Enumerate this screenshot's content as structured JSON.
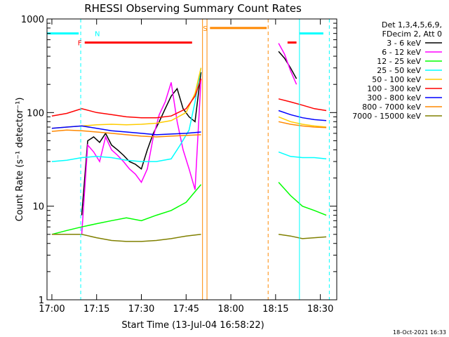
{
  "chart_data": {
    "type": "line",
    "title": "RHESSI Observing Summary Count Rates",
    "xlabel": "Start Time (13-Jul-04 16:58:22)",
    "ylabel": "Count Rate (s⁻¹ detector⁻¹)",
    "y_scale": "log",
    "ylim": [
      1,
      1000
    ],
    "xlim": [
      "16:58:22",
      "18:35:30"
    ],
    "x_ticks": [
      "17:00",
      "17:15",
      "17:30",
      "17:45",
      "18:00",
      "18:15",
      "18:30"
    ],
    "y_ticks": [
      "1",
      "10",
      "100",
      "1000"
    ],
    "footer_date": "18-Oct-2021 16:33",
    "legend_header": [
      "Det 1,3,4,5,6,9,",
      "FDecim 2, Att 0"
    ],
    "legend_placement": "right",
    "series": [
      {
        "name": "3 - 6 keV",
        "color": "#000000",
        "x": [
          "17:10",
          "17:12",
          "17:14",
          "17:16",
          "17:18",
          "17:20",
          "17:22",
          "17:24",
          "17:26",
          "17:28",
          "17:30",
          "17:32",
          "17:34",
          "17:36",
          "17:38",
          "17:40",
          "17:42",
          "17:44",
          "17:46",
          "17:48",
          "17:50",
          "18:16",
          "18:18",
          "18:20",
          "18:22"
        ],
        "y": [
          8,
          50,
          55,
          48,
          60,
          45,
          40,
          35,
          30,
          28,
          25,
          40,
          60,
          80,
          110,
          150,
          180,
          110,
          90,
          80,
          270,
          450,
          380,
          300,
          230
        ]
      },
      {
        "name": "6 - 12 keV",
        "color": "#ff00ff",
        "x": [
          "17:10",
          "17:12",
          "17:14",
          "17:16",
          "17:18",
          "17:20",
          "17:22",
          "17:24",
          "17:26",
          "17:28",
          "17:30",
          "17:32",
          "17:34",
          "17:36",
          "17:38",
          "17:40",
          "17:42",
          "17:44",
          "17:46",
          "17:48",
          "17:50",
          "18:16",
          "18:18",
          "18:20",
          "18:22"
        ],
        "y": [
          5,
          45,
          38,
          30,
          55,
          40,
          35,
          30,
          25,
          22,
          18,
          25,
          55,
          95,
          130,
          210,
          80,
          40,
          25,
          15,
          230,
          550,
          420,
          280,
          200
        ]
      },
      {
        "name": "12 - 25 keV",
        "color": "#00ff00",
        "x": [
          "17:00",
          "17:05",
          "17:10",
          "17:15",
          "17:20",
          "17:25",
          "17:30",
          "17:35",
          "17:40",
          "17:45",
          "17:50",
          "18:16",
          "18:20",
          "18:24",
          "18:28",
          "18:32"
        ],
        "y": [
          5,
          5.5,
          6,
          6.5,
          7,
          7.5,
          7,
          8,
          9,
          11,
          17,
          18,
          13,
          10,
          9,
          8
        ]
      },
      {
        "name": "25 - 50 keV",
        "color": "#00ffff",
        "x": [
          "17:00",
          "17:05",
          "17:10",
          "17:15",
          "17:20",
          "17:25",
          "17:30",
          "17:35",
          "17:40",
          "17:43",
          "17:46",
          "17:48",
          "17:50",
          "18:16",
          "18:20",
          "18:24",
          "18:28",
          "18:32"
        ],
        "y": [
          30,
          31,
          33,
          34,
          33,
          31,
          30,
          30,
          32,
          45,
          65,
          130,
          300,
          38,
          34,
          33,
          33,
          32
        ]
      },
      {
        "name": "50 - 100 keV",
        "color": "#ffcc00",
        "x": [
          "17:00",
          "17:05",
          "17:10",
          "17:15",
          "17:20",
          "17:25",
          "17:30",
          "17:35",
          "17:40",
          "17:45",
          "17:48",
          "17:50",
          "18:16",
          "18:20",
          "18:24",
          "18:28",
          "18:32"
        ],
        "y": [
          68,
          70,
          72,
          74,
          75,
          74,
          75,
          77,
          82,
          100,
          160,
          300,
          90,
          80,
          75,
          72,
          70
        ]
      },
      {
        "name": "100 - 300 keV",
        "color": "#ff0000",
        "x": [
          "17:00",
          "17:05",
          "17:10",
          "17:15",
          "17:20",
          "17:25",
          "17:30",
          "17:35",
          "17:40",
          "17:45",
          "17:48",
          "17:50",
          "18:16",
          "18:20",
          "18:24",
          "18:28",
          "18:32"
        ],
        "y": [
          92,
          98,
          110,
          100,
          95,
          90,
          88,
          88,
          92,
          110,
          150,
          230,
          140,
          130,
          120,
          110,
          105
        ]
      },
      {
        "name": "300 - 800 keV",
        "color": "#0000ff",
        "x": [
          "17:00",
          "17:05",
          "17:10",
          "17:15",
          "17:20",
          "17:25",
          "17:30",
          "17:35",
          "17:40",
          "17:45",
          "17:50",
          "18:16",
          "18:20",
          "18:24",
          "18:28",
          "18:32"
        ],
        "y": [
          68,
          70,
          72,
          68,
          64,
          62,
          60,
          58,
          59,
          60,
          62,
          105,
          95,
          88,
          84,
          82
        ]
      },
      {
        "name": "800 - 7000 keV",
        "color": "#ff8800",
        "x": [
          "17:00",
          "17:05",
          "17:10",
          "17:15",
          "17:20",
          "17:25",
          "17:30",
          "17:35",
          "17:40",
          "17:45",
          "17:50",
          "18:16",
          "18:20",
          "18:24",
          "18:28",
          "18:32"
        ],
        "y": [
          63,
          65,
          64,
          62,
          60,
          58,
          56,
          55,
          56,
          57,
          58,
          80,
          75,
          72,
          70,
          69
        ]
      },
      {
        "name": "7000 - 15000 keV",
        "color": "#808000",
        "x": [
          "17:00",
          "17:05",
          "17:10",
          "17:15",
          "17:20",
          "17:25",
          "17:30",
          "17:35",
          "17:40",
          "17:45",
          "17:50",
          "18:16",
          "18:20",
          "18:24",
          "18:28",
          "18:32"
        ],
        "y": [
          5,
          5,
          5,
          4.6,
          4.3,
          4.2,
          4.2,
          4.3,
          4.5,
          4.8,
          5,
          5,
          4.8,
          4.5,
          4.6,
          4.7
        ]
      }
    ],
    "state_bars": [
      {
        "label": "N",
        "color": "#00ffff",
        "segments": [
          [
            "16:58:22",
            "17:09"
          ],
          [
            "18:23",
            "18:31"
          ]
        ],
        "y": 700
      },
      {
        "label": "F",
        "color": "#ff0000",
        "segments": [
          [
            "17:11",
            "17:47"
          ],
          [
            "18:19",
            "18:22"
          ]
        ],
        "y": 560
      },
      {
        "label": "S",
        "color": "#ff8800",
        "segments": [
          [
            "17:53",
            "18:12"
          ]
        ],
        "y": 800
      }
    ],
    "event_lines": [
      {
        "time": "17:09:40",
        "color": "#00ffff",
        "style": "dashed"
      },
      {
        "time": "17:50:30",
        "color": "#ff8800",
        "style": "solid"
      },
      {
        "time": "17:52:00",
        "color": "#ff8800",
        "style": "solid"
      },
      {
        "time": "18:12:30",
        "color": "#ff8800",
        "style": "dashed"
      },
      {
        "time": "18:23:00",
        "color": "#00ffff",
        "style": "solid"
      },
      {
        "time": "18:33:00",
        "color": "#00ffff",
        "style": "dashed"
      }
    ]
  }
}
